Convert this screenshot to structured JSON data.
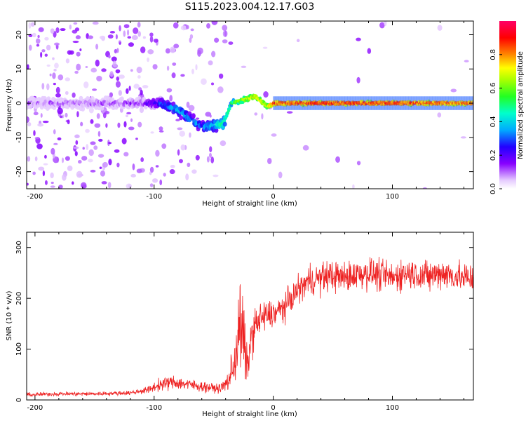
{
  "title": "S115.2023.004.12.17.G03",
  "colors": {
    "snr_line": "#ee2222",
    "axis": "#000000"
  },
  "chart_data": [
    {
      "type": "heatmap",
      "title": "S115.2023.004.12.17.G03",
      "xlabel": "Height of straight line (km)",
      "ylabel": "Frequency (Hz)",
      "xlim": [
        -207,
        168
      ],
      "ylim": [
        -25,
        24
      ],
      "xticks": [
        -200,
        -100,
        0,
        100
      ],
      "yticks": [
        -20,
        -10,
        0,
        10,
        20
      ],
      "colorbar": {
        "label": "Normalized spectral amplitude",
        "range": [
          0.0,
          1.0
        ],
        "ticks": [
          0.0,
          0.2,
          0.4,
          0.6,
          0.8
        ]
      },
      "description_points": [
        {
          "x": -207,
          "freq_center": 0,
          "amplitude": 0.1
        },
        {
          "x": -110,
          "freq_center": 0,
          "amplitude": 0.15
        },
        {
          "x": -95,
          "freq_center": 0,
          "amplitude": 0.3
        },
        {
          "x": -80,
          "freq_center": -2,
          "amplitude": 0.4
        },
        {
          "x": -60,
          "freq_center": -7,
          "amplitude": 0.35
        },
        {
          "x": -42,
          "freq_center": -6,
          "amplitude": 0.5
        },
        {
          "x": -35,
          "freq_center": 0,
          "amplitude": 0.55
        },
        {
          "x": -25,
          "freq_center": 1,
          "amplitude": 0.7
        },
        {
          "x": -15,
          "freq_center": 2,
          "amplitude": 0.75
        },
        {
          "x": -5,
          "freq_center": -1,
          "amplitude": 0.7
        },
        {
          "x": 0,
          "freq_center": 0,
          "amplitude": 0.9
        },
        {
          "x": 50,
          "freq_center": 0,
          "amplitude": 0.9
        },
        {
          "x": 100,
          "freq_center": 0,
          "amplitude": 0.9
        },
        {
          "x": 168,
          "freq_center": 0,
          "amplitude": 0.85
        }
      ]
    },
    {
      "type": "line",
      "xlabel": "Height of straight line (km)",
      "ylabel": "SNR (10 * v/v)",
      "xlim": [
        -207,
        168
      ],
      "ylim": [
        0,
        330
      ],
      "xticks": [
        -200,
        -100,
        0,
        100
      ],
      "yticks": [
        0,
        100,
        200,
        300
      ],
      "series": [
        {
          "name": "SNR",
          "x": [
            -207,
            -180,
            -150,
            -120,
            -105,
            -95,
            -85,
            -75,
            -65,
            -55,
            -45,
            -38,
            -32,
            -28,
            -25,
            -22,
            -18,
            -14,
            -10,
            -5,
            0,
            5,
            10,
            15,
            20,
            25,
            30,
            40,
            50,
            60,
            70,
            80,
            90,
            100,
            110,
            120,
            130,
            140,
            150,
            160,
            168
          ],
          "values": [
            10,
            12,
            12,
            14,
            20,
            30,
            35,
            32,
            28,
            25,
            22,
            35,
            80,
            150,
            120,
            60,
            130,
            150,
            160,
            165,
            170,
            175,
            185,
            200,
            215,
            225,
            235,
            240,
            245,
            240,
            248,
            250,
            245,
            240,
            250,
            248,
            242,
            250,
            245,
            240,
            240
          ],
          "noise_amplitude": [
            6,
            6,
            6,
            6,
            10,
            18,
            20,
            18,
            16,
            14,
            12,
            30,
            80,
            130,
            120,
            60,
            60,
            55,
            50,
            45,
            40,
            40,
            40,
            40,
            40,
            40,
            45,
            45,
            45,
            45,
            45,
            45,
            45,
            45,
            45,
            45,
            45,
            45,
            45,
            45,
            45
          ]
        }
      ]
    }
  ]
}
